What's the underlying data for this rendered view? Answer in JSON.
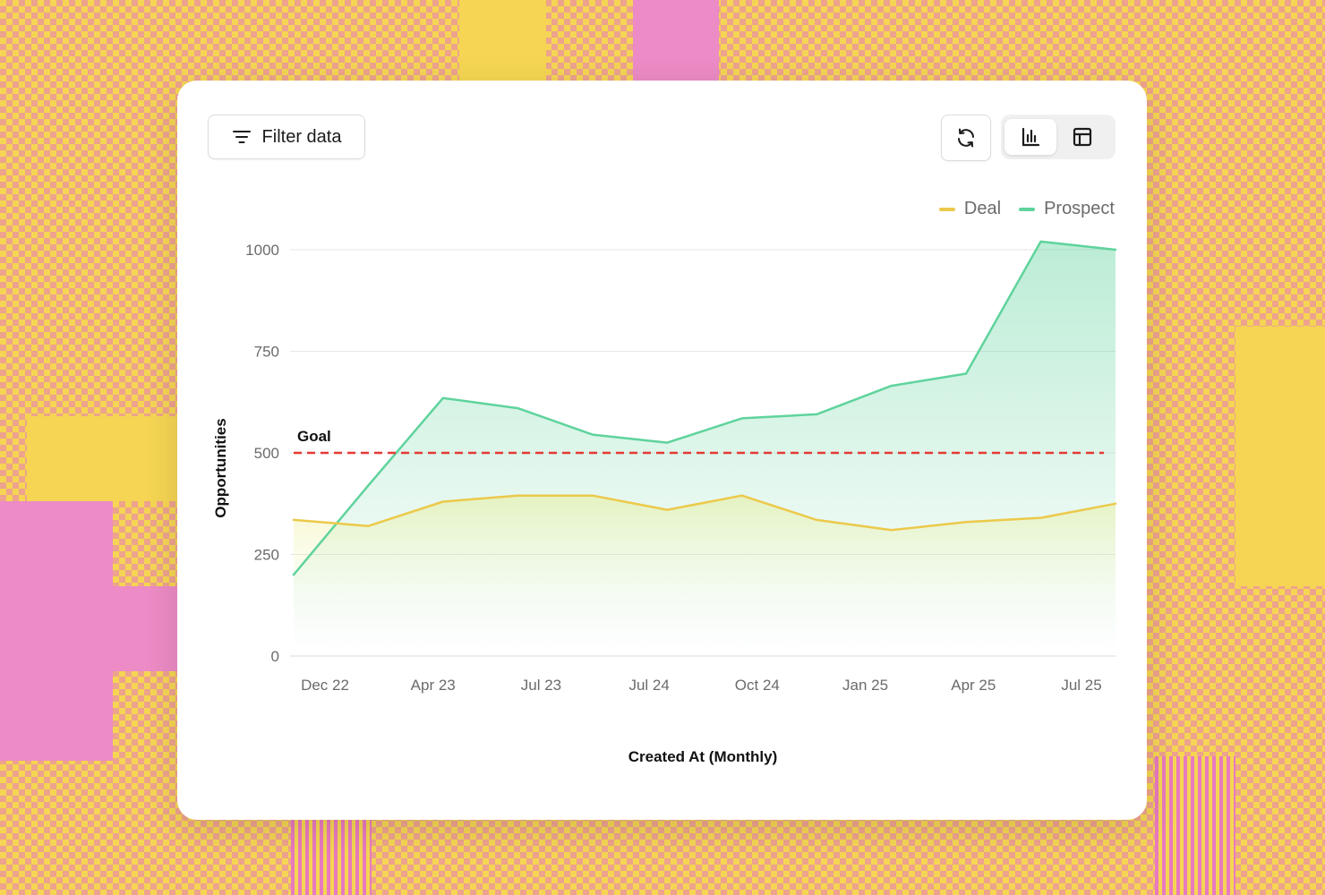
{
  "toolbar": {
    "filter_label": "Filter data",
    "filter_icon": "filter-icon",
    "refresh_icon": "refresh-icon",
    "view_chart_icon": "bar-chart-icon",
    "view_table_icon": "table-icon"
  },
  "colors": {
    "deal": "#ecc94b",
    "prospect": "#5fd39c",
    "goal": "#e53935"
  },
  "chart_data": {
    "type": "area",
    "xlabel": "Created At (Monthly)",
    "ylabel": "Opportunities",
    "ylim": [
      0,
      1000
    ],
    "yticks": [
      0,
      250,
      500,
      750,
      1000
    ],
    "xtick_labels": [
      "Dec 22",
      "Apr 23",
      "Jul 23",
      "Jul 24",
      "Oct 24",
      "Jan 25",
      "Apr 25",
      "Jul 25"
    ],
    "legend": [
      "Deal",
      "Prospect"
    ],
    "goal": {
      "label": "Goal",
      "value": 500
    },
    "series": [
      {
        "name": "Deal",
        "values": [
          335,
          320,
          380,
          395,
          395,
          360,
          395,
          335,
          310,
          330,
          340,
          375
        ]
      },
      {
        "name": "Prospect",
        "values": [
          200,
          420,
          635,
          610,
          545,
          525,
          585,
          595,
          665,
          695,
          1020,
          1000
        ]
      }
    ]
  }
}
